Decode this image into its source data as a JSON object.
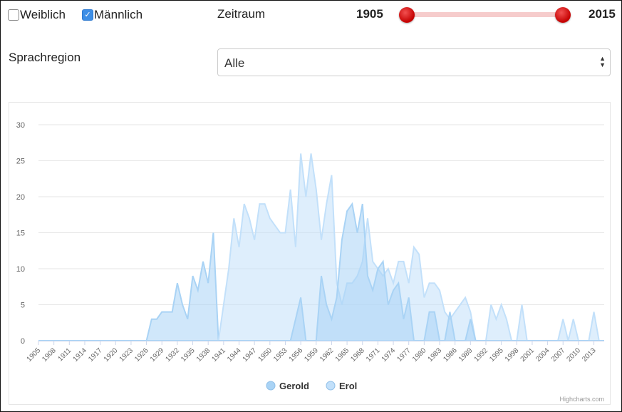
{
  "filters": {
    "female": {
      "label": "Weiblich",
      "checked": false
    },
    "male": {
      "label": "Männlich",
      "checked": true
    },
    "period_label": "Zeitraum",
    "year_start": "1905",
    "year_end": "2015",
    "region_label": "Sprachregion",
    "region_value": "Alle"
  },
  "chart_data": {
    "type": "area",
    "x": [
      1905,
      1906,
      1907,
      1908,
      1909,
      1910,
      1911,
      1912,
      1913,
      1914,
      1915,
      1916,
      1917,
      1918,
      1919,
      1920,
      1921,
      1922,
      1923,
      1924,
      1925,
      1926,
      1927,
      1928,
      1929,
      1930,
      1931,
      1932,
      1933,
      1934,
      1935,
      1936,
      1937,
      1938,
      1939,
      1940,
      1941,
      1942,
      1943,
      1944,
      1945,
      1946,
      1947,
      1948,
      1949,
      1950,
      1951,
      1952,
      1953,
      1954,
      1955,
      1956,
      1957,
      1958,
      1959,
      1960,
      1961,
      1962,
      1963,
      1964,
      1965,
      1966,
      1967,
      1968,
      1969,
      1970,
      1971,
      1972,
      1973,
      1974,
      1975,
      1976,
      1977,
      1978,
      1979,
      1980,
      1981,
      1982,
      1983,
      1984,
      1985,
      1986,
      1987,
      1988,
      1989,
      1990,
      1991,
      1992,
      1993,
      1994,
      1995,
      1996,
      1997,
      1998,
      1999,
      2000,
      2001,
      2002,
      2003,
      2004,
      2005,
      2006,
      2007,
      2008,
      2009,
      2010,
      2011,
      2012,
      2013,
      2014,
      2015
    ],
    "series": [
      {
        "name": "Gerold",
        "color": "#a9d3f5",
        "values": [
          0,
          0,
          0,
          0,
          0,
          0,
          0,
          0,
          0,
          0,
          0,
          0,
          0,
          0,
          0,
          0,
          0,
          0,
          0,
          0,
          0,
          0,
          3,
          3,
          4,
          4,
          4,
          8,
          5,
          3,
          9,
          7,
          11,
          8,
          15,
          0,
          0,
          0,
          0,
          0,
          0,
          0,
          0,
          0,
          0,
          0,
          0,
          0,
          0,
          0,
          0,
          0,
          0,
          0,
          0,
          0,
          0,
          0,
          0,
          0,
          0,
          0,
          0,
          0,
          0,
          0,
          0,
          0,
          0,
          0,
          0,
          0,
          0,
          0,
          0,
          0,
          0,
          0,
          0,
          0,
          0,
          0,
          0,
          0,
          0,
          0,
          0,
          0,
          0,
          0,
          0,
          0,
          0,
          0,
          0,
          0,
          0,
          0,
          0,
          0,
          0,
          0,
          0,
          0,
          0,
          0,
          0,
          0,
          0,
          0,
          0
        ]
      },
      {
        "name": "Erol",
        "color": "#c2e0fa",
        "values": [
          0,
          0,
          0,
          0,
          0,
          0,
          0,
          0,
          0,
          0,
          0,
          0,
          0,
          0,
          0,
          0,
          0,
          0,
          0,
          0,
          0,
          0,
          0,
          0,
          0,
          0,
          0,
          0,
          0,
          0,
          0,
          0,
          0,
          0,
          0,
          0,
          5,
          10,
          17,
          13,
          19,
          17,
          14,
          19,
          19,
          17,
          16,
          15,
          15,
          21,
          13,
          26,
          20,
          26,
          21,
          14,
          19,
          23,
          8,
          5,
          8,
          8,
          9,
          11,
          17,
          11,
          10,
          9,
          10,
          8,
          11,
          11,
          8,
          13,
          12,
          6,
          8,
          8,
          7,
          4,
          3,
          4,
          5,
          6,
          4,
          0,
          0,
          0,
          5,
          3,
          5,
          3,
          0,
          0,
          5,
          0,
          0,
          0,
          0,
          0,
          0,
          0,
          3,
          0,
          3,
          0,
          0,
          0,
          4,
          0,
          0
        ]
      }
    ],
    "overlay_series": [
      {
        "name": "Gerold",
        "color": "#a9d3f5",
        "values": [
          0,
          0,
          0,
          0,
          0,
          0,
          0,
          0,
          0,
          0,
          0,
          0,
          0,
          0,
          0,
          0,
          0,
          0,
          0,
          0,
          0,
          0,
          0,
          0,
          0,
          0,
          0,
          0,
          0,
          0,
          0,
          0,
          0,
          0,
          0,
          0,
          0,
          0,
          0,
          0,
          0,
          0,
          0,
          0,
          0,
          0,
          0,
          0,
          0,
          0,
          3,
          6,
          0,
          0,
          0,
          9,
          5,
          3,
          6,
          14,
          18,
          19,
          15,
          19,
          9,
          7,
          10,
          11,
          5,
          7,
          8,
          3,
          6,
          0,
          0,
          0,
          4,
          4,
          0,
          0,
          4,
          0,
          0,
          0,
          3,
          0,
          0,
          0,
          0,
          0,
          0,
          0,
          0,
          0,
          0,
          0,
          0,
          0,
          0,
          0,
          0,
          0,
          0,
          0,
          0,
          0,
          0,
          0,
          0,
          0,
          0
        ]
      }
    ],
    "xticks": [
      "1905",
      "1908",
      "1911",
      "1914",
      "1917",
      "1920",
      "1923",
      "1926",
      "1929",
      "1932",
      "1935",
      "1938",
      "1941",
      "1944",
      "1947",
      "1950",
      "1953",
      "1956",
      "1959",
      "1962",
      "1965",
      "1968",
      "1971",
      "1974",
      "1977",
      "1980",
      "1983",
      "1986",
      "1989",
      "1992",
      "1995",
      "1998",
      "2001",
      "2004",
      "2007",
      "2010",
      "2013"
    ],
    "yticks": [
      "0",
      "5",
      "10",
      "15",
      "20",
      "25",
      "30"
    ],
    "ylim": [
      0,
      30
    ],
    "grid": true,
    "legend_position": "bottom-center",
    "legend": [
      {
        "name": "Gerold",
        "color": "#a9d3f5"
      },
      {
        "name": "Erol",
        "color": "#c2e0fa"
      }
    ],
    "credits": "Highcharts.com"
  }
}
